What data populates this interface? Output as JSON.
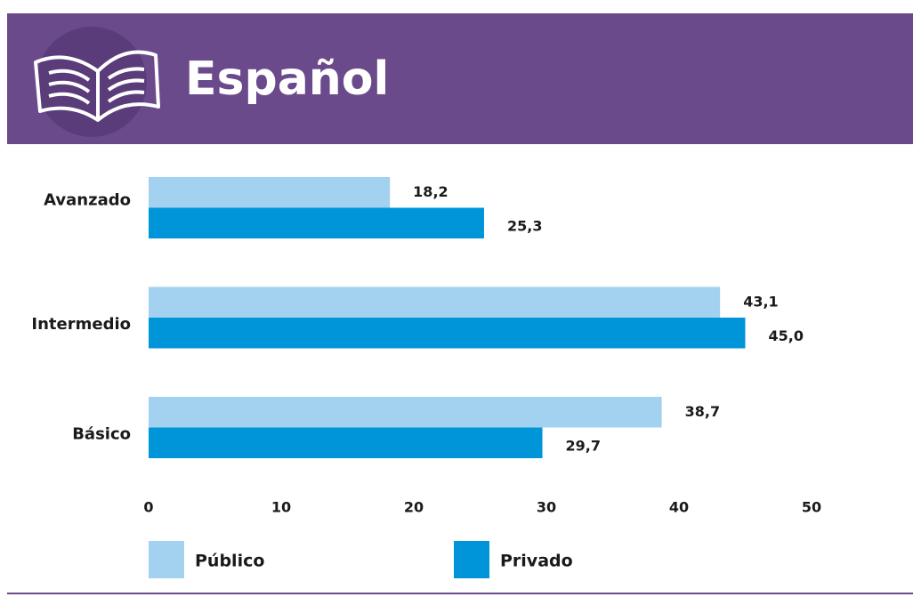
{
  "chart_data": {
    "type": "barh",
    "title": "Español",
    "categories": [
      "Avanzado",
      "Intermedio",
      "Básico"
    ],
    "series": [
      {
        "name": "Público",
        "color": "#a3d1f0",
        "values": [
          18.2,
          43.1,
          38.7
        ],
        "value_labels": [
          "18,2",
          "43,1",
          "38,7"
        ]
      },
      {
        "name": "Privado",
        "color": "#0095d9",
        "values": [
          25.3,
          45.0,
          29.7
        ],
        "value_labels": [
          "25,3",
          "45,0",
          "29,7"
        ]
      }
    ],
    "xlim": [
      0,
      50
    ],
    "xticks": [
      0,
      10,
      20,
      30,
      40,
      50
    ],
    "grid": false
  }
}
